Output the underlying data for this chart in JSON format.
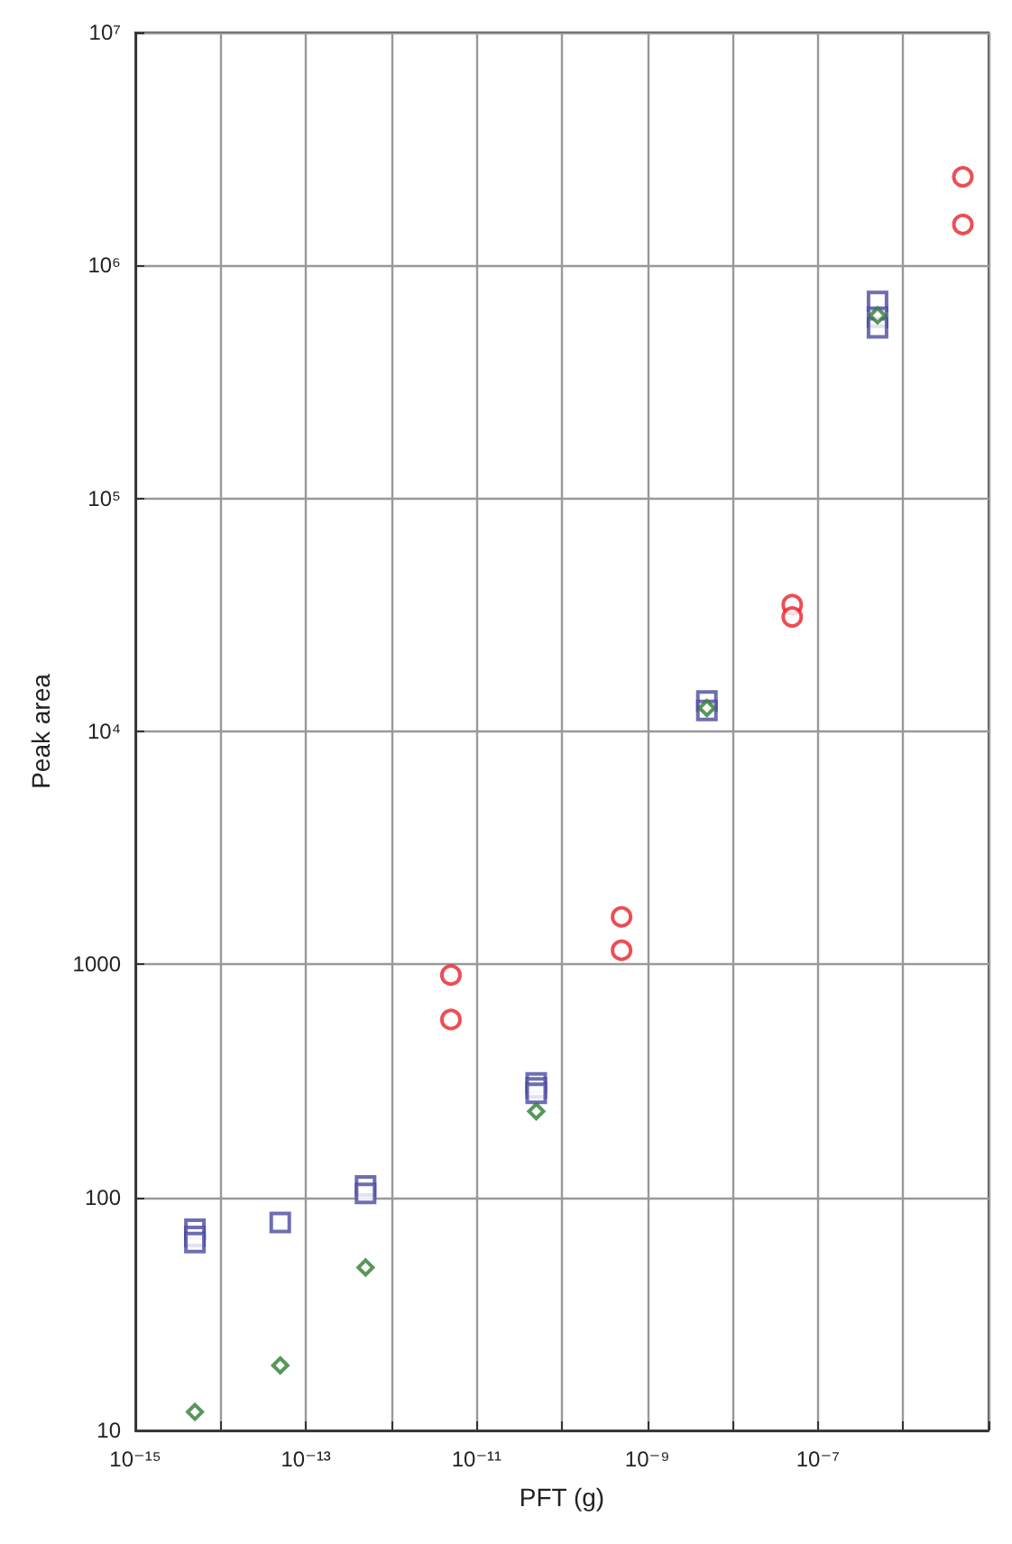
{
  "chart_data": {
    "type": "scatter",
    "xlabel": "PFT (g)",
    "ylabel": "Peak area",
    "log": "xy",
    "grid": true,
    "xlim": [
      1e-15,
      1e-05
    ],
    "xticks": [
      {
        "value": 1e-15,
        "label": "10⁻¹⁵"
      },
      {
        "value": 1e-14,
        "label": null
      },
      {
        "value": 1e-13,
        "label": "10⁻¹³"
      },
      {
        "value": 1e-12,
        "label": null
      },
      {
        "value": 1e-11,
        "label": "10⁻¹¹"
      },
      {
        "value": 1e-10,
        "label": null
      },
      {
        "value": 1e-09,
        "label": "10⁻⁹"
      },
      {
        "value": 1e-08,
        "label": null
      },
      {
        "value": 1e-07,
        "label": "10⁻⁷"
      },
      {
        "value": 1e-06,
        "label": null
      },
      {
        "value": 1e-05,
        "label": null
      }
    ],
    "ylim": [
      10,
      10000000
    ],
    "yticks": [
      10,
      100,
      1000,
      {
        "value": 10000,
        "label": "10⁴"
      },
      {
        "value": 100000,
        "label": "10⁵"
      },
      {
        "value": 1000000,
        "label": "10⁶"
      },
      {
        "value": 10000000,
        "label": "10⁷"
      }
    ],
    "series": [
      {
        "color": "#e8202a",
        "marker": "circle",
        "x": [
          5e-12,
          5e-12,
          5e-10,
          5e-10,
          5e-08,
          5e-08,
          5e-06,
          5e-06
        ],
        "values": [
          900,
          580,
          1600,
          1150,
          35000,
          31000,
          2400000,
          1500000
        ]
      },
      {
        "color": "#4a4aa0",
        "marker": "square",
        "x": [
          5e-15,
          5e-15,
          5e-15,
          5e-14,
          5e-13,
          5e-13,
          5e-11,
          5e-11,
          5e-11,
          5e-09,
          5e-09,
          5e-07,
          5e-07,
          5e-07
        ],
        "values": [
          73,
          68,
          64,
          78,
          112,
          104,
          310,
          295,
          280,
          13500,
          12300,
          700000,
          600000,
          540000
        ]
      },
      {
        "color": "#2e7d32",
        "marker": "diamond",
        "x": [
          5e-15,
          5e-14,
          5e-13,
          5e-11,
          5e-09,
          5e-07
        ],
        "values": [
          12,
          19,
          50,
          234,
          12600,
          610000
        ]
      }
    ]
  }
}
